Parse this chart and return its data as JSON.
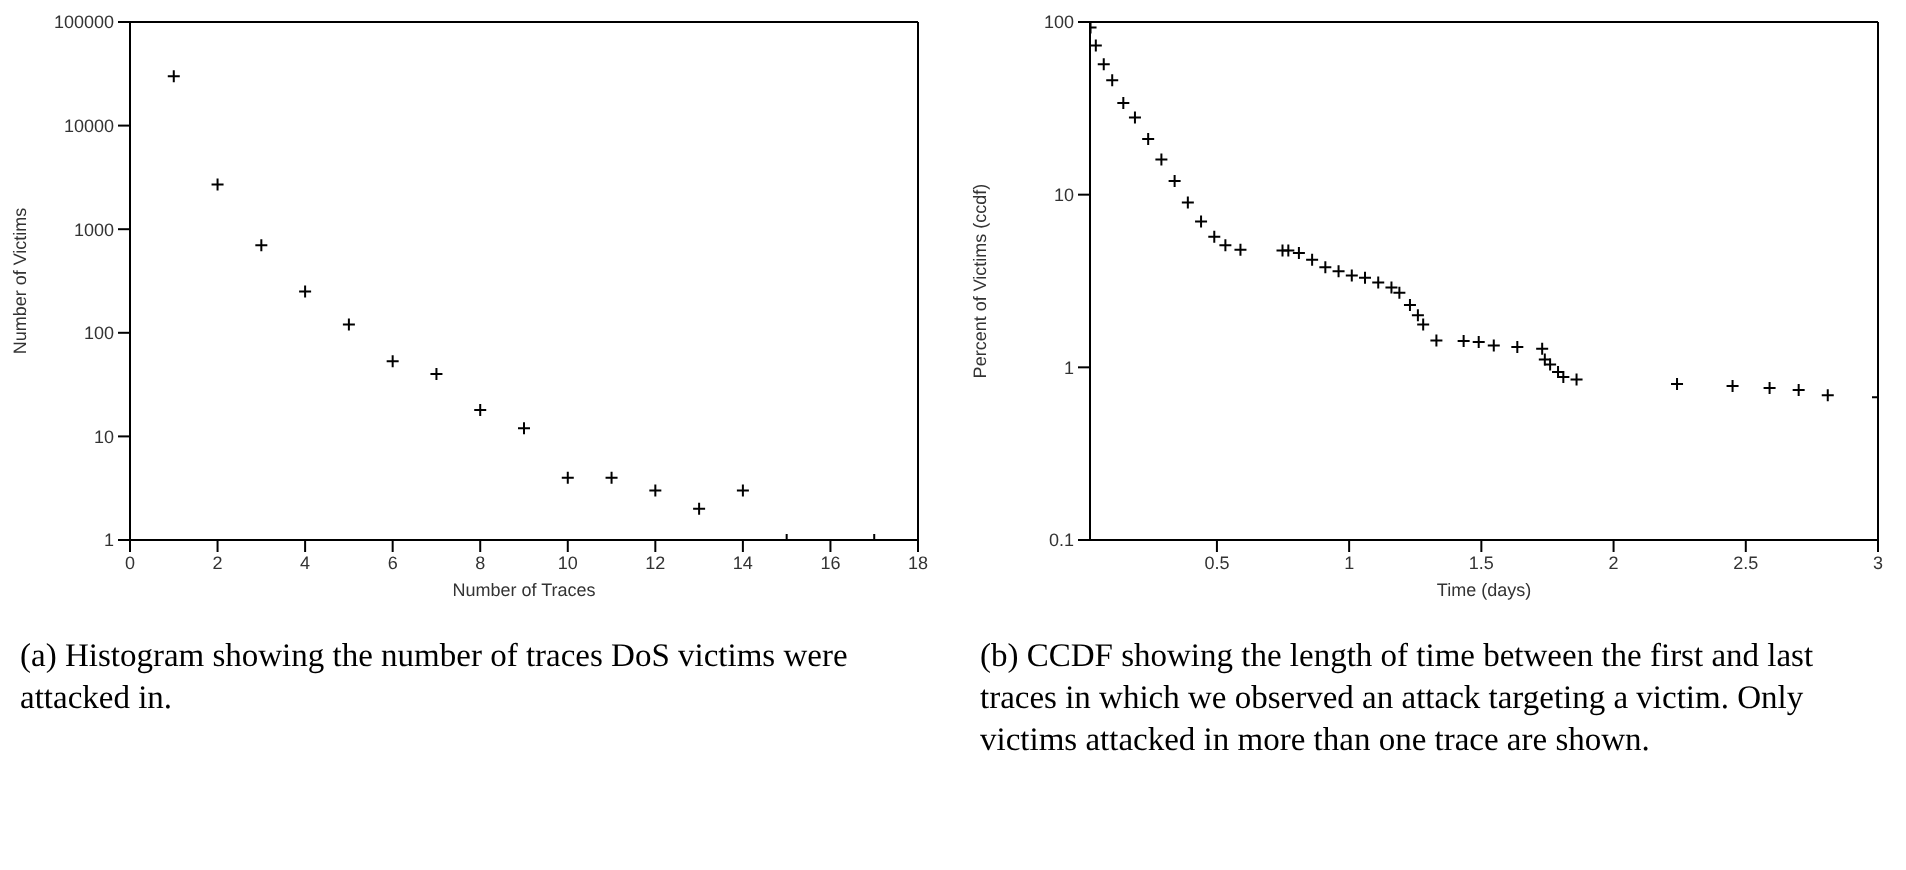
{
  "chart_data": [
    {
      "type": "scatter",
      "xlabel": "Number of Traces",
      "ylabel": "Number of Victims",
      "log": "y",
      "marker": "cross",
      "color": "#000000",
      "x": [
        1,
        2,
        3,
        4,
        5,
        6,
        7,
        8,
        9,
        10,
        11,
        12,
        13,
        14,
        15,
        17
      ],
      "values": [
        30000,
        2700,
        700,
        250,
        120,
        53,
        40,
        18,
        12,
        4,
        4,
        3,
        2,
        3,
        1,
        1
      ],
      "xlim": [
        0,
        18
      ],
      "xticks": [
        0,
        2,
        4,
        6,
        8,
        10,
        12,
        14,
        16,
        18
      ],
      "ylim": [
        1,
        100000
      ],
      "yticks": [
        1,
        10,
        100,
        1000,
        10000,
        100000
      ],
      "annotations": [
        "(a) Histogram showing the number of traces DoS victims were attacked in."
      ]
    },
    {
      "type": "scatter",
      "xlabel": "Time (days)",
      "ylabel": "Percent of Victims (ccdf)",
      "log": "y",
      "marker": "cross",
      "color": "#000000",
      "x": [
        0.022,
        0.042,
        0.072,
        0.104,
        0.146,
        0.19,
        0.24,
        0.29,
        0.34,
        0.39,
        0.44,
        0.49,
        0.532,
        0.589,
        0.748,
        0.77,
        0.81,
        0.86,
        0.91,
        0.96,
        1.01,
        1.06,
        1.11,
        1.16,
        1.19,
        1.23,
        1.26,
        1.28,
        1.33,
        1.433,
        1.49,
        1.547,
        1.636,
        1.73,
        1.74,
        1.76,
        1.79,
        1.81,
        1.86,
        2.24,
        2.45,
        2.59,
        2.7,
        2.81,
        3.0
      ],
      "values": [
        93,
        73,
        57,
        46,
        34,
        28,
        21,
        16,
        12,
        9,
        7,
        5.7,
        5.1,
        4.8,
        4.75,
        4.75,
        4.6,
        4.2,
        3.8,
        3.6,
        3.4,
        3.3,
        3.1,
        2.9,
        2.7,
        2.3,
        2,
        1.77,
        1.43,
        1.42,
        1.4,
        1.34,
        1.31,
        1.28,
        1.11,
        1.04,
        0.94,
        0.88,
        0.85,
        0.8,
        0.78,
        0.76,
        0.74,
        0.69,
        0.67
      ],
      "xlim": [
        0.02,
        3
      ],
      "xticks": [
        0.5,
        1,
        1.5,
        2,
        2.5,
        3
      ],
      "ylim": [
        0.1,
        100
      ],
      "yticks": [
        0.1,
        1,
        10,
        100
      ],
      "annotations": [
        "(b) CCDF showing the length of time between the first and last traces in which we observed an attack targeting a victim. Only victims attacked in more than one trace are shown."
      ]
    }
  ]
}
